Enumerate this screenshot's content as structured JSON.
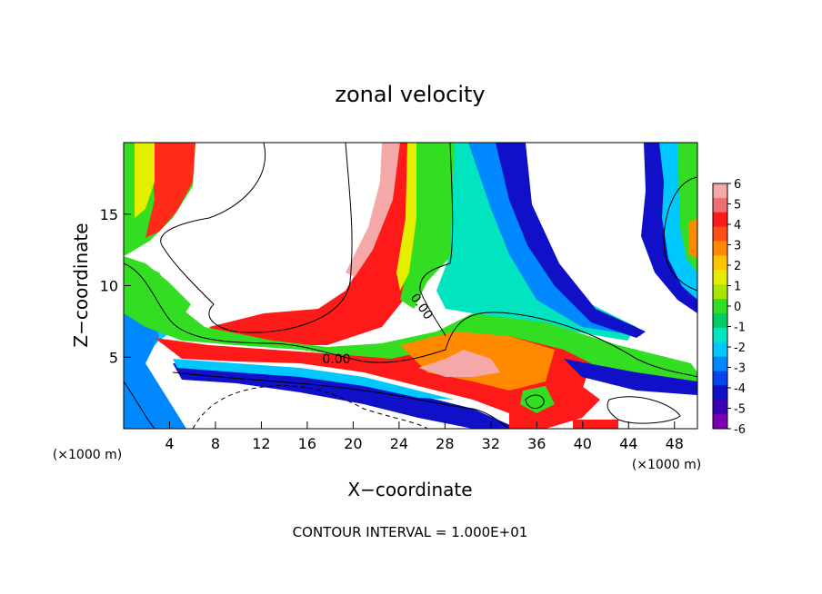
{
  "chart_data": {
    "type": "heatmap",
    "title": "zonal velocity",
    "xlabel": "X−coordinate",
    "ylabel": "Z−coordinate",
    "x_unit_left": "(×1000 m)",
    "x_unit_right": "(×1000 m)",
    "footer": "CONTOUR INTERVAL = 1.000E+01",
    "xlim": [
      0,
      50
    ],
    "ylim": [
      0,
      20
    ],
    "x_ticks": [
      4,
      8,
      12,
      16,
      20,
      24,
      28,
      32,
      36,
      40,
      44,
      48
    ],
    "y_ticks": [
      5,
      10,
      15
    ],
    "contour_labels": [
      {
        "text": "0.00",
        "x": 19.0,
        "y": 4.8
      },
      {
        "text": "0.00",
        "x": 25.8,
        "y": 8.6
      }
    ],
    "colorbar": {
      "ticks": [
        6,
        5,
        4,
        3,
        2,
        1,
        0,
        -1,
        -2,
        -3,
        -4,
        -5,
        -6
      ],
      "colors": [
        "#f5a8a8",
        "#ee6f6f",
        "#ff1a1a",
        "#ff4d1a",
        "#ff8a00",
        "#ffc400",
        "#e6ee00",
        "#a8e600",
        "#33dd22",
        "#00cc66",
        "#00e5c0",
        "#00c8ff",
        "#0088ff",
        "#0044ee",
        "#1010c8",
        "#3c00b4",
        "#7a00b0"
      ]
    }
  }
}
